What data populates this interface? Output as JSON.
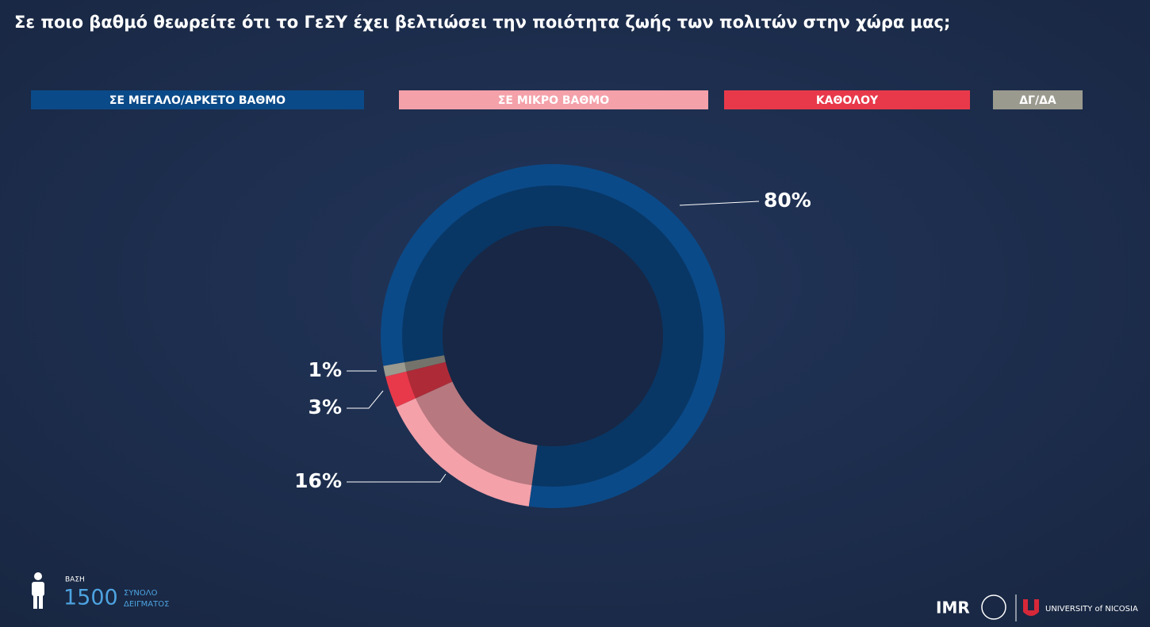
{
  "chart_data": {
    "type": "donut",
    "title": "Σε ποιο βαθμό θεωρείτε ότι το ΓεΣΥ έχει βελτιώσει την ποιότητα ζωής των πολιτών στην χώρα μας;",
    "categories": [
      "ΣΕ ΜΕΓΑΛΟ/ΑΡΚΕΤΟ ΒΑΘΜΟ",
      "ΣΕ ΜΙΚΡΟ ΒΑΘΜΟ",
      "ΚΑΘΟΛΟΥ",
      "ΔΓ/ΔΑ"
    ],
    "values": [
      80,
      16,
      3,
      1
    ],
    "value_labels": [
      "80%",
      "16%",
      "3%",
      "1%"
    ],
    "colors": [
      "#0b4a88",
      "#f4a1aa",
      "#e8394a",
      "#9b9a8f"
    ]
  },
  "footer": {
    "base_label": "ΒΑΣΗ",
    "sample_size": "1500",
    "sample_label_1": "ΣΥΝΟΛΟ",
    "sample_label_2": "ΔΕΙΓΜΑΤΟΣ"
  },
  "logos": {
    "imr": "IMR",
    "university": "UNIVERSITY of NICOSIA"
  }
}
